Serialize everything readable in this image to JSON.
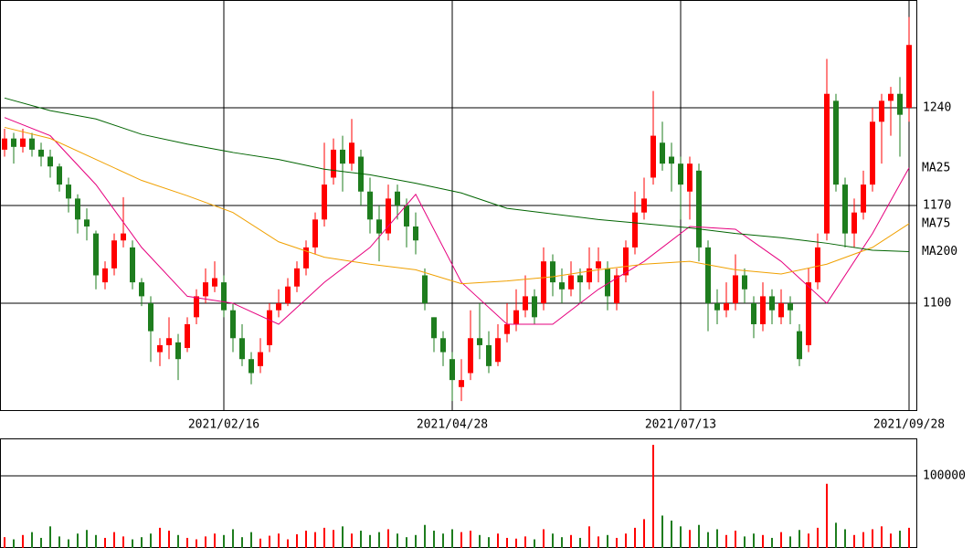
{
  "chart_data": {
    "type": "candlestick",
    "candles": [
      [
        1210,
        1225,
        1205,
        1218
      ],
      [
        1218,
        1222,
        1200,
        1212
      ],
      [
        1212,
        1225,
        1208,
        1218
      ],
      [
        1218,
        1222,
        1205,
        1210
      ],
      [
        1210,
        1215,
        1198,
        1205
      ],
      [
        1205,
        1210,
        1190,
        1198
      ],
      [
        1198,
        1200,
        1180,
        1185
      ],
      [
        1185,
        1190,
        1165,
        1175
      ],
      [
        1175,
        1178,
        1150,
        1160
      ],
      [
        1160,
        1168,
        1145,
        1155
      ],
      [
        1150,
        1152,
        1110,
        1120
      ],
      [
        1115,
        1130,
        1110,
        1125
      ],
      [
        1125,
        1150,
        1120,
        1145
      ],
      [
        1145,
        1176,
        1140,
        1150
      ],
      [
        1140,
        1145,
        1110,
        1115
      ],
      [
        1115,
        1118,
        1098,
        1105
      ],
      [
        1100,
        1105,
        1058,
        1080
      ],
      [
        1065,
        1075,
        1055,
        1070
      ],
      [
        1070,
        1090,
        1060,
        1075
      ],
      [
        1072,
        1078,
        1045,
        1060
      ],
      [
        1068,
        1090,
        1065,
        1085
      ],
      [
        1090,
        1110,
        1085,
        1105
      ],
      [
        1105,
        1125,
        1100,
        1115
      ],
      [
        1112,
        1130,
        1108,
        1118
      ],
      [
        1115,
        1120,
        1090,
        1095
      ],
      [
        1095,
        1100,
        1065,
        1075
      ],
      [
        1075,
        1085,
        1055,
        1060
      ],
      [
        1060,
        1065,
        1042,
        1050
      ],
      [
        1055,
        1075,
        1050,
        1065
      ],
      [
        1070,
        1100,
        1065,
        1095
      ],
      [
        1095,
        1110,
        1090,
        1100
      ],
      [
        1100,
        1118,
        1098,
        1112
      ],
      [
        1112,
        1130,
        1108,
        1125
      ],
      [
        1125,
        1145,
        1120,
        1140
      ],
      [
        1140,
        1165,
        1135,
        1160
      ],
      [
        1160,
        1215,
        1155,
        1185
      ],
      [
        1190,
        1218,
        1185,
        1210
      ],
      [
        1210,
        1220,
        1180,
        1200
      ],
      [
        1200,
        1232,
        1195,
        1215
      ],
      [
        1205,
        1210,
        1170,
        1180
      ],
      [
        1180,
        1190,
        1150,
        1160
      ],
      [
        1160,
        1170,
        1130,
        1150
      ],
      [
        1150,
        1185,
        1145,
        1175
      ],
      [
        1180,
        1185,
        1160,
        1170
      ],
      [
        1170,
        1175,
        1140,
        1155
      ],
      [
        1155,
        1165,
        1135,
        1145
      ],
      [
        1120,
        1125,
        1095,
        1100
      ],
      [
        1090,
        1090,
        1065,
        1075
      ],
      [
        1075,
        1080,
        1055,
        1065
      ],
      [
        1060,
        1065,
        1030,
        1045
      ],
      [
        1040,
        1060,
        1030,
        1045
      ],
      [
        1050,
        1095,
        1045,
        1075
      ],
      [
        1075,
        1100,
        1060,
        1070
      ],
      [
        1070,
        1080,
        1050,
        1055
      ],
      [
        1058,
        1085,
        1055,
        1075
      ],
      [
        1078,
        1100,
        1072,
        1085
      ],
      [
        1085,
        1110,
        1080,
        1095
      ],
      [
        1095,
        1120,
        1090,
        1105
      ],
      [
        1105,
        1110,
        1085,
        1090
      ],
      [
        1100,
        1140,
        1095,
        1130
      ],
      [
        1130,
        1135,
        1105,
        1115
      ],
      [
        1115,
        1125,
        1100,
        1110
      ],
      [
        1110,
        1130,
        1105,
        1120
      ],
      [
        1120,
        1125,
        1100,
        1115
      ],
      [
        1115,
        1140,
        1110,
        1125
      ],
      [
        1125,
        1140,
        1115,
        1130
      ],
      [
        1125,
        1130,
        1095,
        1105
      ],
      [
        1100,
        1125,
        1095,
        1120
      ],
      [
        1120,
        1145,
        1115,
        1140
      ],
      [
        1140,
        1180,
        1135,
        1165
      ],
      [
        1165,
        1190,
        1160,
        1175
      ],
      [
        1190,
        1252,
        1185,
        1220
      ],
      [
        1215,
        1230,
        1195,
        1200
      ],
      [
        1205,
        1215,
        1180,
        1200
      ],
      [
        1200,
        1205,
        1160,
        1185
      ],
      [
        1180,
        1205,
        1160,
        1200
      ],
      [
        1195,
        1200,
        1130,
        1140
      ],
      [
        1140,
        1145,
        1080,
        1100
      ],
      [
        1100,
        1110,
        1085,
        1095
      ],
      [
        1095,
        1115,
        1090,
        1100
      ],
      [
        1100,
        1135,
        1095,
        1120
      ],
      [
        1120,
        1125,
        1100,
        1110
      ],
      [
        1100,
        1105,
        1075,
        1085
      ],
      [
        1085,
        1115,
        1080,
        1105
      ],
      [
        1105,
        1110,
        1085,
        1095
      ],
      [
        1090,
        1110,
        1085,
        1100
      ],
      [
        1100,
        1105,
        1085,
        1095
      ],
      [
        1080,
        1085,
        1055,
        1060
      ],
      [
        1070,
        1125,
        1065,
        1115
      ],
      [
        1115,
        1150,
        1110,
        1140
      ],
      [
        1150,
        1275,
        1145,
        1250
      ],
      [
        1245,
        1250,
        1180,
        1185
      ],
      [
        1185,
        1190,
        1140,
        1150
      ],
      [
        1150,
        1175,
        1140,
        1165
      ],
      [
        1165,
        1195,
        1160,
        1185
      ],
      [
        1185,
        1240,
        1180,
        1230
      ],
      [
        1230,
        1250,
        1200,
        1245
      ],
      [
        1245,
        1255,
        1220,
        1250
      ],
      [
        1250,
        1262,
        1205,
        1235
      ],
      [
        1240,
        1305,
        1230,
        1285
      ]
    ],
    "volume": [
      15000,
      12000,
      18000,
      22000,
      14000,
      30000,
      16000,
      12000,
      20000,
      25000,
      18000,
      14000,
      22000,
      16000,
      12000,
      15000,
      20000,
      28000,
      24000,
      18000,
      14000,
      12000,
      16000,
      20000,
      18000,
      26000,
      15000,
      22000,
      13000,
      17000,
      20000,
      12000,
      19000,
      24000,
      22000,
      28000,
      25000,
      30000,
      20000,
      24000,
      18000,
      22000,
      26000,
      20000,
      15000,
      18000,
      32000,
      24000,
      20000,
      26000,
      22000,
      24000,
      18000,
      15000,
      20000,
      14000,
      13000,
      16000,
      12000,
      26000,
      20000,
      15000,
      18000,
      14000,
      30000,
      16000,
      18000,
      14000,
      20000,
      28000,
      40000,
      143000,
      45000,
      38000,
      30000,
      25000,
      32000,
      22000,
      26000,
      18000,
      24000,
      16000,
      20000,
      18000,
      14000,
      22000,
      16000,
      25000,
      20000,
      28000,
      89000,
      35000,
      26000,
      18000,
      22000,
      26000,
      30000,
      20000,
      24000,
      28000
    ],
    "ma": [
      {
        "name": "MA25",
        "color": "#e6007e",
        "x": [
          0,
          5,
          10,
          15,
          20,
          25,
          30,
          35,
          40,
          45,
          50,
          55,
          60,
          65,
          70,
          75,
          80,
          85,
          90,
          95,
          99
        ],
        "values": [
          1233,
          1220,
          1185,
          1140,
          1105,
          1100,
          1085,
          1115,
          1140,
          1178,
          1115,
          1085,
          1085,
          1110,
          1130,
          1155,
          1153,
          1130,
          1100,
          1150,
          1197
        ]
      },
      {
        "name": "MA75",
        "color": "#f0a000",
        "x": [
          0,
          5,
          10,
          15,
          20,
          25,
          30,
          35,
          40,
          45,
          50,
          55,
          60,
          65,
          70,
          75,
          80,
          85,
          90,
          95,
          99
        ],
        "values": [
          1226,
          1218,
          1203,
          1188,
          1177,
          1165,
          1144,
          1133,
          1128,
          1124,
          1114,
          1116,
          1119,
          1124,
          1128,
          1130,
          1124,
          1121,
          1128,
          1140,
          1157
        ]
      },
      {
        "name": "MA200",
        "color": "#006400",
        "x": [
          0,
          5,
          10,
          15,
          20,
          25,
          30,
          35,
          40,
          45,
          50,
          55,
          60,
          65,
          70,
          75,
          80,
          85,
          90,
          95,
          99
        ],
        "values": [
          1247,
          1238,
          1232,
          1221,
          1214,
          1208,
          1203,
          1196,
          1192,
          1186,
          1179,
          1168,
          1164,
          1160,
          1157,
          1154,
          1150,
          1147,
          1143,
          1138,
          1137
        ]
      }
    ],
    "ylim": [
      1023.5,
      1317.2
    ],
    "yticks": [
      1100,
      1170,
      1240
    ],
    "volume_ylim": [
      0,
      152000
    ],
    "volume_yticks": [
      100000
    ],
    "xticks": [
      {
        "value": 24,
        "label": "2021/02/16"
      },
      {
        "value": 49,
        "label": "2021/04/28"
      },
      {
        "value": 74,
        "label": "2021/07/13"
      },
      {
        "value": 99,
        "label": "2021/09/28"
      }
    ],
    "up_color": "#ff0000",
    "down_color": "#1e7d1e",
    "grid": true
  }
}
